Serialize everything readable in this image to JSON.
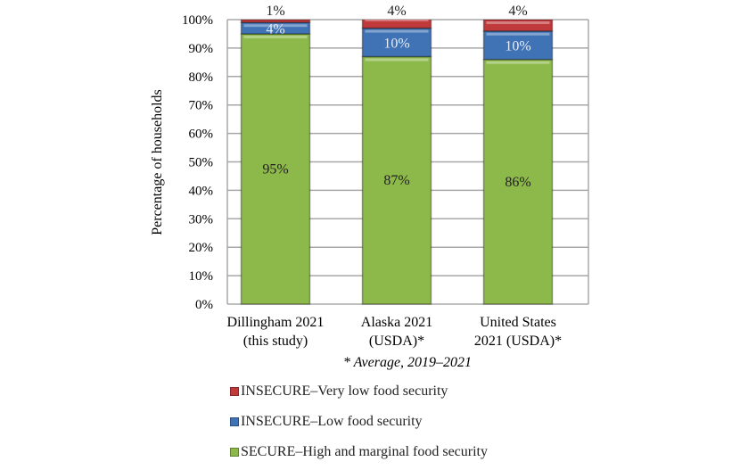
{
  "chart_data": {
    "type": "bar",
    "stacked": true,
    "categories": [
      [
        "Dillingham 2021",
        "(this study)"
      ],
      [
        "Alaska 2021",
        "(USDA)*"
      ],
      [
        "United States",
        "2021 (USDA)*"
      ]
    ],
    "series": [
      {
        "name": "SECURE–High and marginal food security",
        "color": "#8db84a",
        "values": [
          95,
          87,
          86
        ],
        "labels": [
          "95%",
          "87%",
          "86%"
        ]
      },
      {
        "name": "INSECURE–Low food security",
        "color": "#3f73b5",
        "values": [
          4,
          10,
          10
        ],
        "labels": [
          "4%",
          "10%",
          "10%"
        ]
      },
      {
        "name": "INSECURE–Very low food security",
        "color": "#c0393b",
        "values": [
          1,
          4,
          4
        ],
        "labels": [
          "1%",
          "4%",
          "4%"
        ]
      }
    ],
    "ylabel": "Percentage of households",
    "ylim": [
      0,
      100
    ],
    "yticks": [
      "0%",
      "10%",
      "20%",
      "30%",
      "40%",
      "50%",
      "60%",
      "70%",
      "80%",
      "90%",
      "100%"
    ],
    "grid": true,
    "footnote": "* Average, 2019–2021",
    "legend_order": [
      2,
      1,
      0
    ],
    "legend_position": "bottom"
  }
}
